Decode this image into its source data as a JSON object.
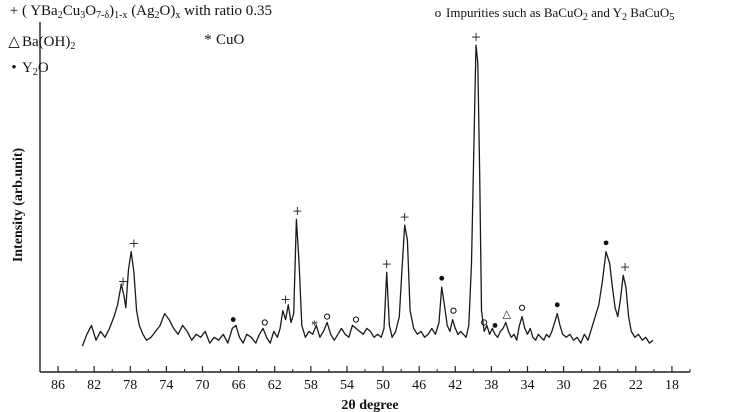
{
  "chart_data": {
    "type": "line",
    "title": "",
    "xlabel": "2θ degree",
    "ylabel": "Intensity (arb.unit)",
    "xlim": [
      88,
      16
    ],
    "x_reversed": true,
    "grid": false,
    "legend_placement": "top-left",
    "ticks": [
      86,
      82,
      78,
      74,
      70,
      66,
      62,
      58,
      54,
      50,
      46,
      42,
      38,
      34,
      30,
      26,
      22,
      18
    ],
    "tick_labels": [
      "86",
      "82",
      "78",
      "74",
      "70",
      "66",
      "62",
      "58",
      "54",
      "50",
      "46",
      "42",
      "38",
      "34",
      "30",
      "26",
      "22",
      "18"
    ],
    "legend": [
      {
        "symbol": "+",
        "label_parts": [
          "( YBa",
          "2",
          "Cu",
          "3",
          "O",
          "7-δ",
          ")",
          "1-x",
          " (Ag",
          "2",
          "O)",
          "x",
          " with ratio 0.35"
        ]
      },
      {
        "symbol": "o",
        "label_parts": [
          "Impurities such as BaCuO",
          "2",
          " and Y",
          "2",
          " BaCuO",
          "5"
        ]
      },
      {
        "symbol": "△",
        "label_parts": [
          "Ba(OH)",
          "2"
        ]
      },
      {
        "symbol": "*",
        "label_parts": [
          "CuO"
        ]
      },
      {
        "symbol": "•",
        "label_parts": [
          "Y",
          "2",
          "O"
        ]
      }
    ],
    "series": [
      {
        "points": [
          [
            83.3,
            2
          ],
          [
            82.8,
            6
          ],
          [
            82.3,
            9
          ],
          [
            81.8,
            4
          ],
          [
            81.3,
            7
          ],
          [
            80.8,
            5
          ],
          [
            80.3,
            8
          ],
          [
            79.8,
            12
          ],
          [
            79.4,
            16
          ],
          [
            79.0,
            23
          ],
          [
            78.7,
            19
          ],
          [
            78.5,
            15
          ],
          [
            78.2,
            28
          ],
          [
            77.9,
            34
          ],
          [
            77.6,
            27
          ],
          [
            77.3,
            14
          ],
          [
            77.0,
            9
          ],
          [
            76.6,
            6
          ],
          [
            76.2,
            4
          ],
          [
            75.7,
            5
          ],
          [
            75.2,
            7
          ],
          [
            74.7,
            9
          ],
          [
            74.2,
            13
          ],
          [
            73.7,
            11
          ],
          [
            73.2,
            8
          ],
          [
            72.7,
            6
          ],
          [
            72.2,
            9
          ],
          [
            71.7,
            7
          ],
          [
            71.2,
            4
          ],
          [
            70.7,
            6
          ],
          [
            70.2,
            5
          ],
          [
            69.7,
            7
          ],
          [
            69.2,
            3
          ],
          [
            68.7,
            5
          ],
          [
            68.2,
            4
          ],
          [
            67.7,
            6
          ],
          [
            67.2,
            3
          ],
          [
            66.7,
            8
          ],
          [
            66.3,
            9
          ],
          [
            65.9,
            5
          ],
          [
            65.5,
            3
          ],
          [
            65.1,
            6
          ],
          [
            64.6,
            5
          ],
          [
            64.1,
            3
          ],
          [
            63.7,
            6
          ],
          [
            63.3,
            8
          ],
          [
            62.9,
            5
          ],
          [
            62.5,
            3
          ],
          [
            62.1,
            7
          ],
          [
            61.7,
            5
          ],
          [
            61.4,
            8
          ],
          [
            61.1,
            14
          ],
          [
            60.8,
            11
          ],
          [
            60.5,
            16
          ],
          [
            60.2,
            10
          ],
          [
            59.9,
            13
          ],
          [
            59.6,
            45
          ],
          [
            59.3,
            30
          ],
          [
            59.0,
            9
          ],
          [
            58.6,
            5
          ],
          [
            58.2,
            7
          ],
          [
            57.8,
            6
          ],
          [
            57.4,
            9
          ],
          [
            57.0,
            5
          ],
          [
            56.6,
            7
          ],
          [
            56.2,
            10
          ],
          [
            55.8,
            6
          ],
          [
            55.4,
            4
          ],
          [
            55.0,
            6
          ],
          [
            54.6,
            8
          ],
          [
            54.2,
            6
          ],
          [
            53.8,
            5
          ],
          [
            53.4,
            9
          ],
          [
            53.0,
            8
          ],
          [
            52.6,
            7
          ],
          [
            52.2,
            6
          ],
          [
            51.8,
            8
          ],
          [
            51.4,
            7
          ],
          [
            51.0,
            5
          ],
          [
            50.6,
            6
          ],
          [
            50.2,
            5
          ],
          [
            49.9,
            8
          ],
          [
            49.6,
            27
          ],
          [
            49.3,
            9
          ],
          [
            49.0,
            5
          ],
          [
            48.6,
            7
          ],
          [
            48.2,
            12
          ],
          [
            47.9,
            28
          ],
          [
            47.6,
            43
          ],
          [
            47.3,
            38
          ],
          [
            47.0,
            14
          ],
          [
            46.6,
            8
          ],
          [
            46.2,
            6
          ],
          [
            45.8,
            7
          ],
          [
            45.4,
            5
          ],
          [
            45.0,
            6
          ],
          [
            44.6,
            8
          ],
          [
            44.2,
            6
          ],
          [
            43.8,
            10
          ],
          [
            43.5,
            22
          ],
          [
            43.2,
            16
          ],
          [
            42.9,
            9
          ],
          [
            42.6,
            7
          ],
          [
            42.3,
            11
          ],
          [
            42.0,
            8
          ],
          [
            41.7,
            6
          ],
          [
            41.4,
            7
          ],
          [
            41.1,
            6
          ],
          [
            40.8,
            5
          ],
          [
            40.5,
            9
          ],
          [
            40.2,
            30
          ],
          [
            39.9,
            75
          ],
          [
            39.7,
            104
          ],
          [
            39.5,
            98
          ],
          [
            39.3,
            60
          ],
          [
            39.1,
            14
          ],
          [
            38.8,
            7
          ],
          [
            38.5,
            9
          ],
          [
            38.2,
            6
          ],
          [
            37.9,
            8
          ],
          [
            37.6,
            6
          ],
          [
            37.3,
            5
          ],
          [
            37.0,
            7
          ],
          [
            36.7,
            8
          ],
          [
            36.4,
            10
          ],
          [
            36.1,
            7
          ],
          [
            35.8,
            5
          ],
          [
            35.5,
            6
          ],
          [
            35.2,
            4
          ],
          [
            34.9,
            9
          ],
          [
            34.6,
            12
          ],
          [
            34.3,
            8
          ],
          [
            34.0,
            6
          ],
          [
            33.7,
            8
          ],
          [
            33.4,
            5
          ],
          [
            33.1,
            4
          ],
          [
            32.8,
            6
          ],
          [
            32.5,
            5
          ],
          [
            32.2,
            4
          ],
          [
            31.9,
            6
          ],
          [
            31.6,
            5
          ],
          [
            31.3,
            7
          ],
          [
            31.0,
            10
          ],
          [
            30.7,
            13
          ],
          [
            30.4,
            9
          ],
          [
            30.1,
            6
          ],
          [
            29.7,
            5
          ],
          [
            29.3,
            6
          ],
          [
            28.9,
            4
          ],
          [
            28.5,
            5
          ],
          [
            28.1,
            3
          ],
          [
            27.7,
            6
          ],
          [
            27.3,
            4
          ],
          [
            26.9,
            8
          ],
          [
            26.5,
            12
          ],
          [
            26.1,
            16
          ],
          [
            25.7,
            24
          ],
          [
            25.3,
            34
          ],
          [
            24.9,
            30
          ],
          [
            24.6,
            22
          ],
          [
            24.3,
            15
          ],
          [
            24.0,
            12
          ],
          [
            23.7,
            18
          ],
          [
            23.4,
            26
          ],
          [
            23.1,
            22
          ],
          [
            22.8,
            12
          ],
          [
            22.5,
            7
          ],
          [
            22.1,
            5
          ],
          [
            21.7,
            6
          ],
          [
            21.3,
            4
          ],
          [
            20.9,
            5
          ],
          [
            20.5,
            3
          ],
          [
            20.1,
            4
          ]
        ]
      }
    ],
    "markers": [
      {
        "symbol": "+",
        "x": 78.8,
        "y": 24
      },
      {
        "symbol": "+",
        "x": 77.6,
        "y": 37
      },
      {
        "symbol": "•",
        "x": 66.6,
        "y": 11
      },
      {
        "symbol": "o",
        "x": 63.1,
        "y": 10
      },
      {
        "symbol": "+",
        "x": 60.8,
        "y": 18
      },
      {
        "symbol": "+",
        "x": 59.5,
        "y": 48
      },
      {
        "symbol": "*",
        "x": 57.6,
        "y": 10
      },
      {
        "symbol": "o",
        "x": 56.2,
        "y": 12
      },
      {
        "symbol": "o",
        "x": 53.0,
        "y": 11
      },
      {
        "symbol": "+",
        "x": 49.6,
        "y": 30
      },
      {
        "symbol": "+",
        "x": 47.6,
        "y": 46
      },
      {
        "symbol": "•",
        "x": 43.5,
        "y": 25
      },
      {
        "symbol": "o",
        "x": 42.2,
        "y": 14
      },
      {
        "symbol": "+",
        "x": 39.7,
        "y": 107
      },
      {
        "symbol": "o",
        "x": 38.8,
        "y": 10
      },
      {
        "symbol": "•",
        "x": 37.6,
        "y": 9
      },
      {
        "symbol": "△",
        "x": 36.3,
        "y": 13
      },
      {
        "symbol": "o",
        "x": 34.6,
        "y": 15
      },
      {
        "symbol": "•",
        "x": 30.7,
        "y": 16
      },
      {
        "symbol": "•",
        "x": 25.3,
        "y": 37
      },
      {
        "symbol": "+",
        "x": 23.2,
        "y": 29
      }
    ]
  }
}
